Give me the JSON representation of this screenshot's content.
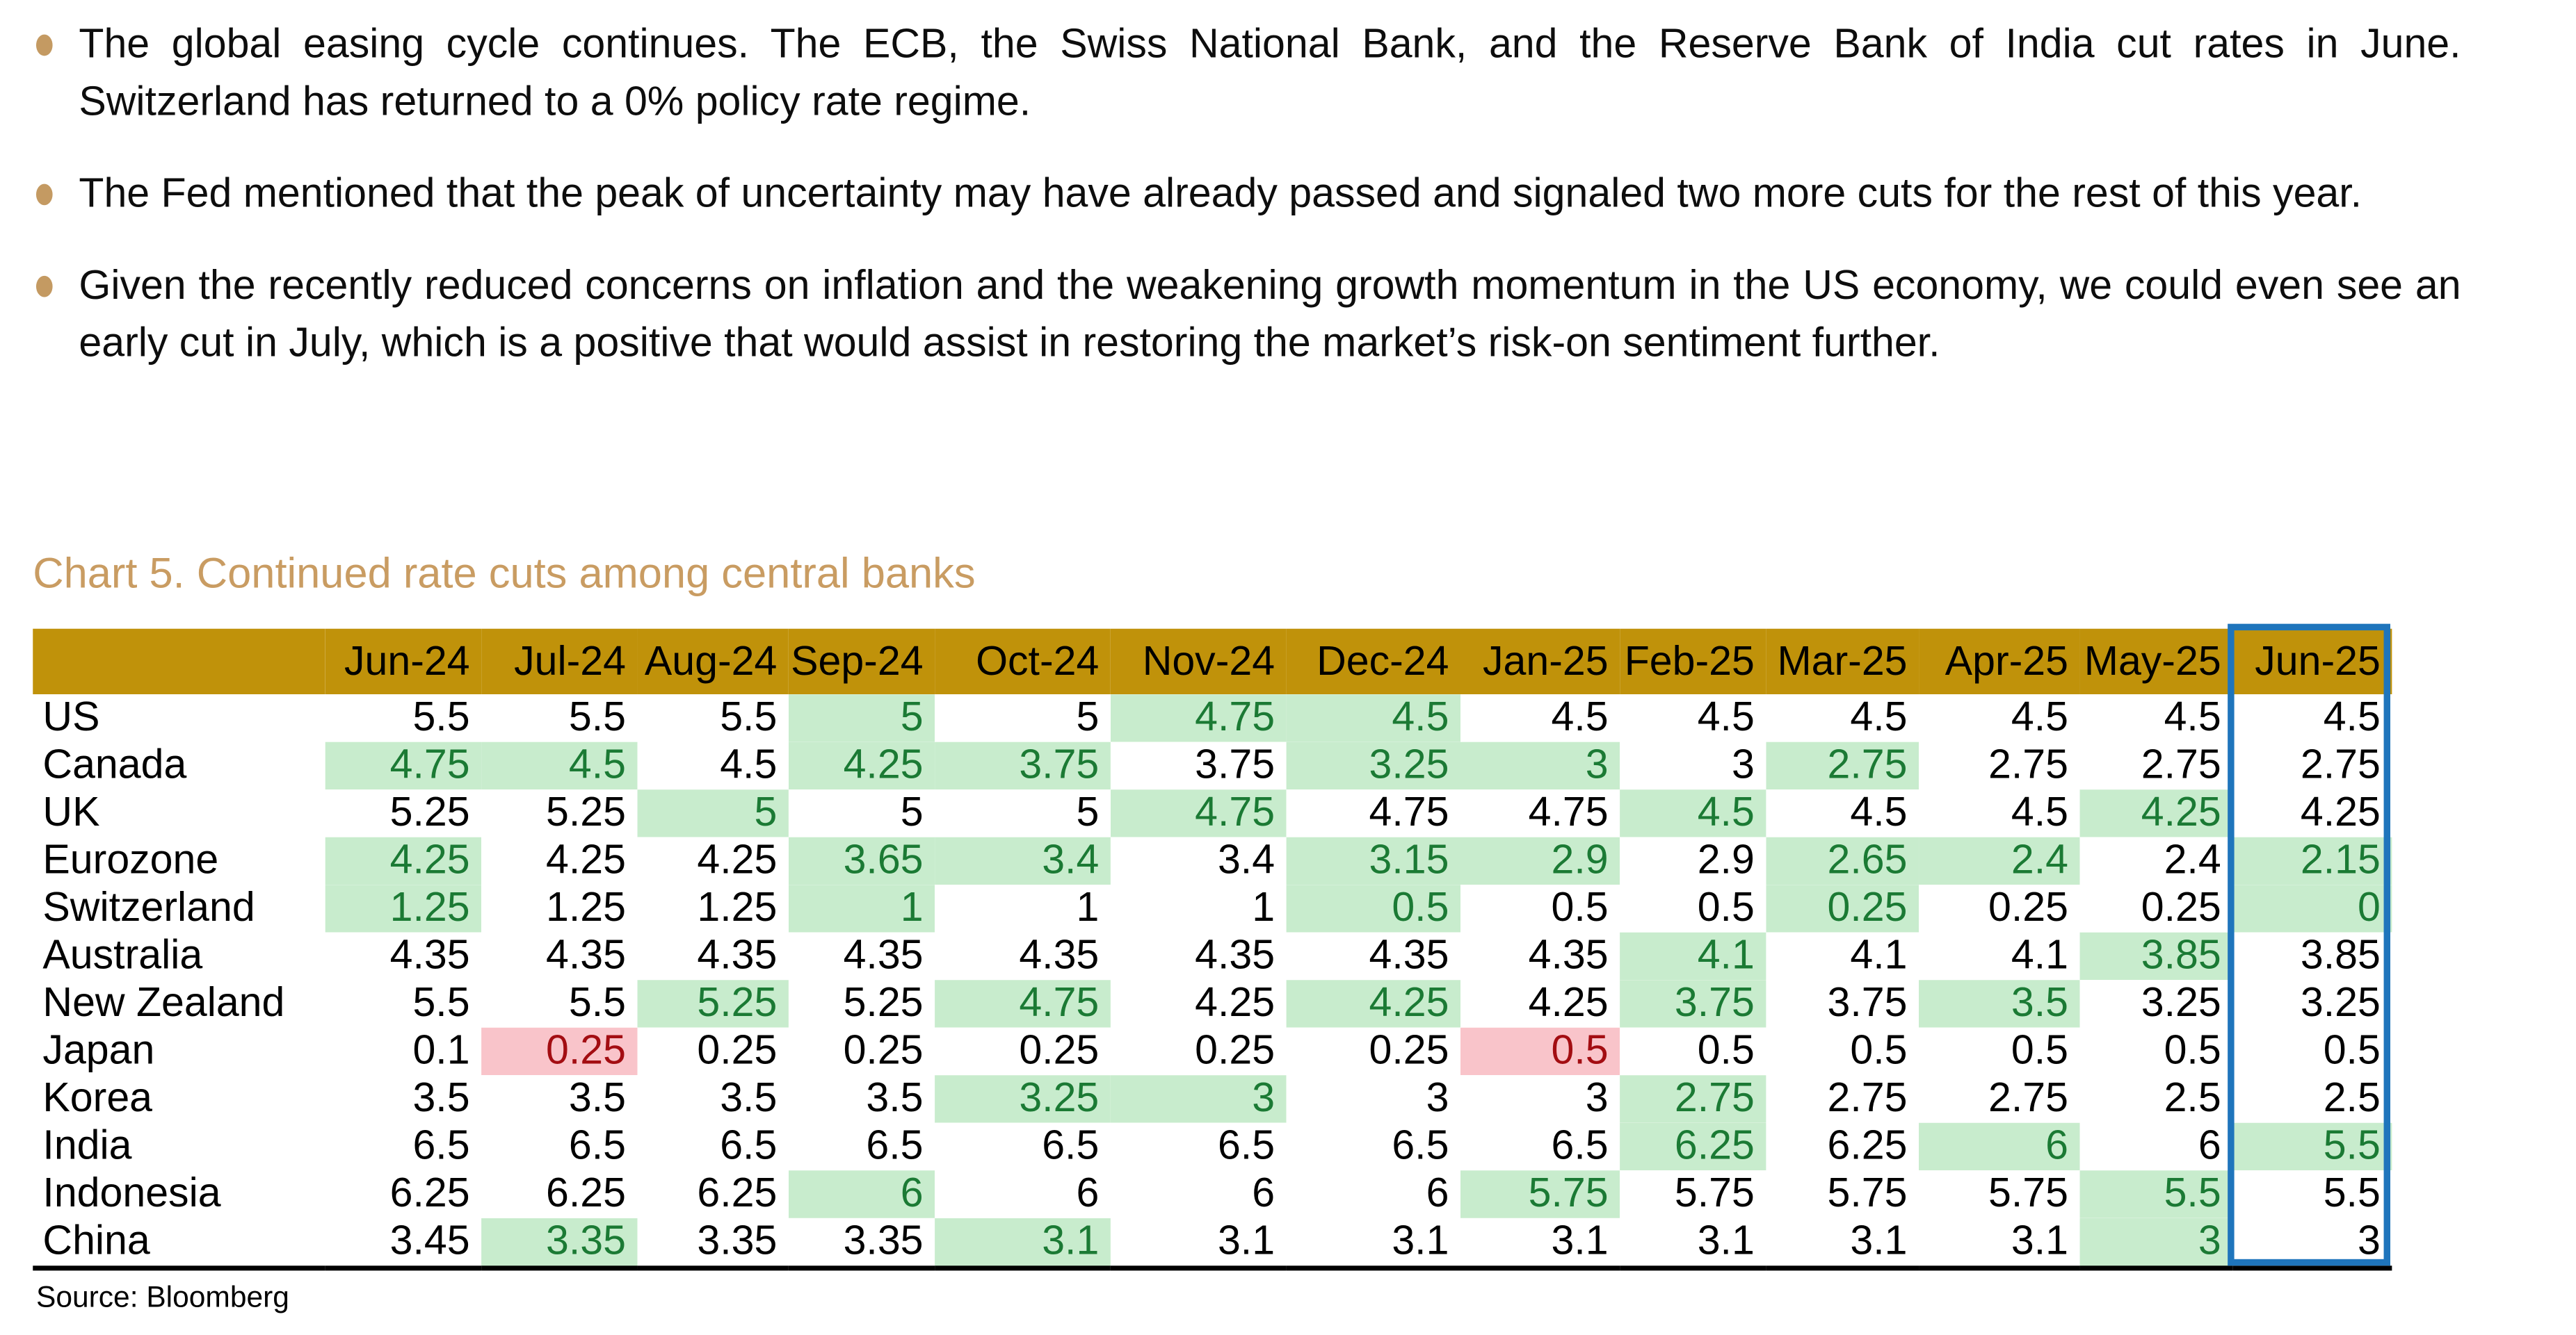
{
  "bullets": [
    "The global easing cycle continues. The ECB, the Swiss National Bank, and the Reserve Bank of India cut rates in June. Switzerland has returned to a 0% policy rate regime.",
    "The Fed mentioned that the peak of uncertainty may have already passed and signaled two more cuts for the rest of this year.",
    "Given the recently reduced concerns on inflation and the weakening growth momentum in the US economy, we could even see an early cut in July, which is a positive that would assist in restoring the market’s risk-on sentiment further."
  ],
  "chart_title": "Chart 5. Continued rate cuts among central banks",
  "source": "Source: Bloomberg",
  "table": {
    "columns": [
      "Jun-24",
      "Jul-24",
      "Aug-24",
      "Sep-24",
      "Oct-24",
      "Nov-24",
      "Dec-24",
      "Jan-25",
      "Feb-25",
      "Mar-25",
      "Apr-25",
      "May-25",
      "Jun-25"
    ],
    "outlined_column": "Jun-25",
    "rows": [
      {
        "country": "US",
        "values": [
          "5.5",
          "5.5",
          "5.5",
          "5",
          "5",
          "4.75",
          "4.5",
          "4.5",
          "4.5",
          "4.5",
          "4.5",
          "4.5",
          "4.5"
        ],
        "marks": [
          "",
          "",
          "",
          "g",
          "",
          "g",
          "g",
          "",
          "",
          "",
          "",
          "",
          ""
        ]
      },
      {
        "country": "Canada",
        "values": [
          "4.75",
          "4.5",
          "4.5",
          "4.25",
          "3.75",
          "3.75",
          "3.25",
          "3",
          "3",
          "2.75",
          "2.75",
          "2.75",
          "2.75"
        ],
        "marks": [
          "g",
          "g",
          "",
          "g",
          "g",
          "",
          "g",
          "g",
          "",
          "g",
          "",
          "",
          ""
        ]
      },
      {
        "country": "UK",
        "values": [
          "5.25",
          "5.25",
          "5",
          "5",
          "5",
          "4.75",
          "4.75",
          "4.75",
          "4.5",
          "4.5",
          "4.5",
          "4.25",
          "4.25"
        ],
        "marks": [
          "",
          "",
          "g",
          "",
          "",
          "g",
          "",
          "",
          "g",
          "",
          "",
          "g",
          ""
        ]
      },
      {
        "country": "Eurozone",
        "values": [
          "4.25",
          "4.25",
          "4.25",
          "3.65",
          "3.4",
          "3.4",
          "3.15",
          "2.9",
          "2.9",
          "2.65",
          "2.4",
          "2.4",
          "2.15"
        ],
        "marks": [
          "g",
          "",
          "",
          "g",
          "g",
          "",
          "g",
          "g",
          "",
          "g",
          "g",
          "",
          "g"
        ]
      },
      {
        "country": "Switzerland",
        "values": [
          "1.25",
          "1.25",
          "1.25",
          "1",
          "1",
          "1",
          "0.5",
          "0.5",
          "0.5",
          "0.25",
          "0.25",
          "0.25",
          "0"
        ],
        "marks": [
          "g",
          "",
          "",
          "g",
          "",
          "",
          "g",
          "",
          "",
          "g",
          "",
          "",
          "g"
        ]
      },
      {
        "country": "Australia",
        "values": [
          "4.35",
          "4.35",
          "4.35",
          "4.35",
          "4.35",
          "4.35",
          "4.35",
          "4.35",
          "4.1",
          "4.1",
          "4.1",
          "3.85",
          "3.85"
        ],
        "marks": [
          "",
          "",
          "",
          "",
          "",
          "",
          "",
          "",
          "g",
          "",
          "",
          "g",
          ""
        ]
      },
      {
        "country": "New Zealand",
        "values": [
          "5.5",
          "5.5",
          "5.25",
          "5.25",
          "4.75",
          "4.25",
          "4.25",
          "4.25",
          "3.75",
          "3.75",
          "3.5",
          "3.25",
          "3.25"
        ],
        "marks": [
          "",
          "",
          "g",
          "",
          "g",
          "",
          "g",
          "",
          "g",
          "",
          "g",
          "",
          ""
        ]
      },
      {
        "country": "Japan",
        "values": [
          "0.1",
          "0.25",
          "0.25",
          "0.25",
          "0.25",
          "0.25",
          "0.25",
          "0.5",
          "0.5",
          "0.5",
          "0.5",
          "0.5",
          "0.5"
        ],
        "marks": [
          "",
          "r",
          "",
          "",
          "",
          "",
          "",
          "r",
          "",
          "",
          "",
          "",
          ""
        ]
      },
      {
        "country": "Korea",
        "values": [
          "3.5",
          "3.5",
          "3.5",
          "3.5",
          "3.25",
          "3",
          "3",
          "3",
          "2.75",
          "2.75",
          "2.75",
          "2.5",
          "2.5"
        ],
        "marks": [
          "",
          "",
          "",
          "",
          "g",
          "g",
          "",
          "",
          "g",
          "",
          "",
          "",
          ""
        ]
      },
      {
        "country": "India",
        "values": [
          "6.5",
          "6.5",
          "6.5",
          "6.5",
          "6.5",
          "6.5",
          "6.5",
          "6.5",
          "6.25",
          "6.25",
          "6",
          "6",
          "5.5"
        ],
        "marks": [
          "",
          "",
          "",
          "",
          "",
          "",
          "",
          "",
          "g",
          "",
          "g",
          "",
          "g"
        ]
      },
      {
        "country": "Indonesia",
        "values": [
          "6.25",
          "6.25",
          "6.25",
          "6",
          "6",
          "6",
          "6",
          "5.75",
          "5.75",
          "5.75",
          "5.75",
          "5.5",
          "5.5"
        ],
        "marks": [
          "",
          "",
          "",
          "g",
          "",
          "",
          "",
          "g",
          "",
          "",
          "",
          "g",
          ""
        ]
      },
      {
        "country": "China",
        "values": [
          "3.45",
          "3.35",
          "3.35",
          "3.35",
          "3.1",
          "3.1",
          "3.1",
          "3.1",
          "3.1",
          "3.1",
          "3.1",
          "3",
          "3"
        ],
        "marks": [
          "",
          "g",
          "",
          "",
          "g",
          "",
          "",
          "",
          "",
          "",
          "",
          "g",
          ""
        ]
      }
    ]
  },
  "colors": {
    "header_gold": "#C0920A",
    "title_tan": "#C99C62",
    "bullet_dot": "#C49A62",
    "cut_bg": "#C8ECCD",
    "cut_text": "#1B7A34",
    "hike_bg": "#F9C4CA",
    "hike_text": "#A30D12",
    "selection_blue": "#1F75BC",
    "text_black": "#000000"
  }
}
